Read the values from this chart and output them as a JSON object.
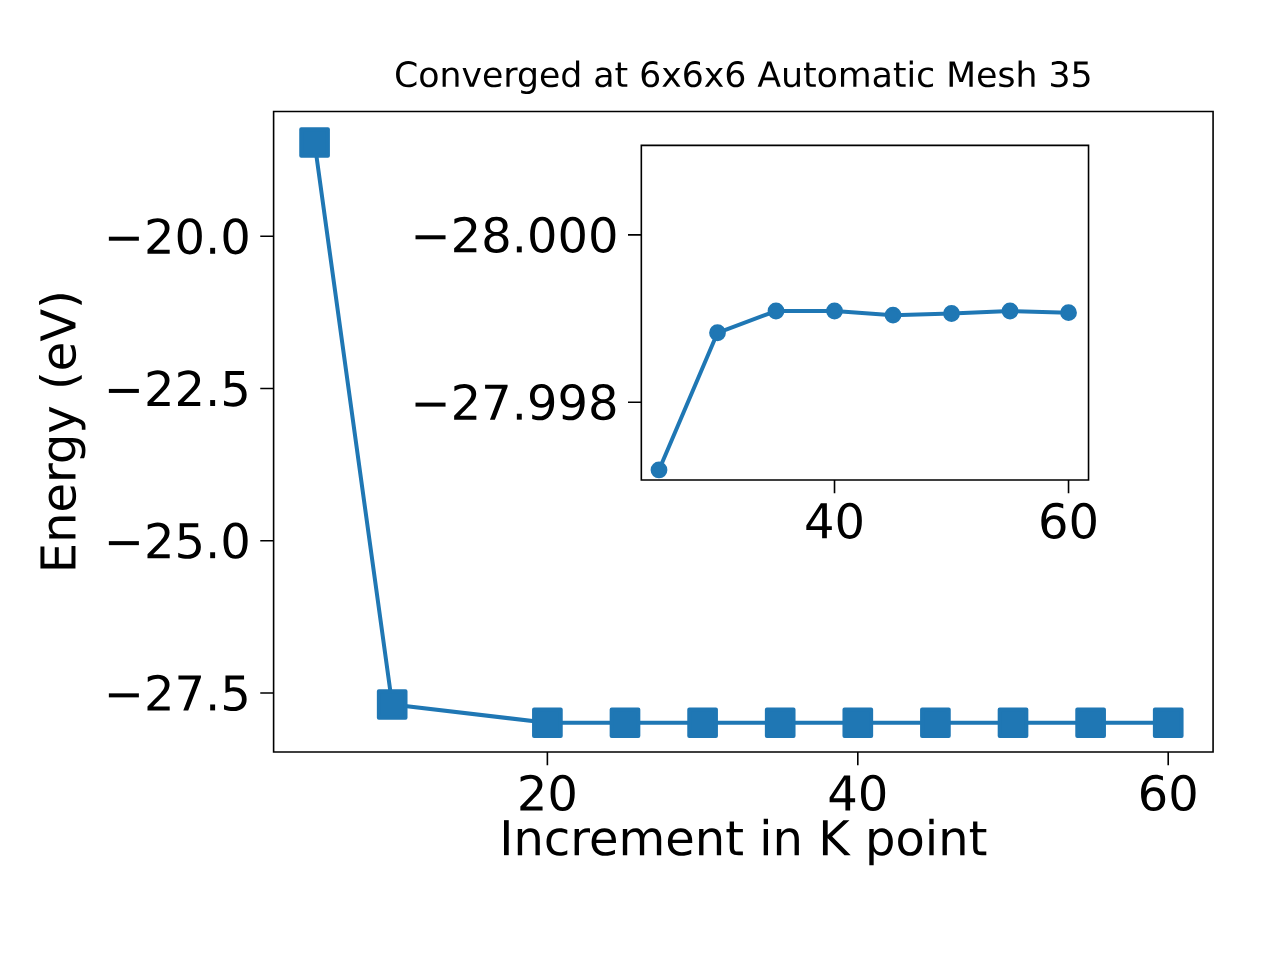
{
  "chart_data": [
    {
      "type": "line",
      "title": "Converged at 6x6x6 Automatic Mesh 35",
      "xlabel": "Increment in K point",
      "ylabel": "Energy (eV)",
      "x": [
        5,
        10,
        20,
        25,
        30,
        35,
        40,
        45,
        50,
        55,
        60
      ],
      "series": [
        {
          "color": "#1f77b4",
          "values": [
            -18.46,
            -27.69,
            -27.99,
            -27.99,
            -27.99,
            -27.99,
            -27.99,
            -27.99,
            -27.99,
            -27.99,
            -27.99
          ]
        }
      ],
      "xlim": [
        2.36,
        62.89
      ],
      "ylim": [
        -28.47,
        -17.95
      ],
      "xticks": [
        20,
        40,
        60
      ],
      "yticks": [
        {
          "value": -20.0,
          "label": "−20.0"
        },
        {
          "value": -22.5,
          "label": "−22.5"
        },
        {
          "value": -25.0,
          "label": "−25.0"
        },
        {
          "value": -27.5,
          "label": "−27.5"
        }
      ],
      "marker": "square",
      "line_style": "solid",
      "grid": false
    },
    {
      "type": "line",
      "x": [
        25,
        30,
        35,
        40,
        45,
        50,
        55,
        60
      ],
      "series": [
        {
          "color": "#1f77b4",
          "values": [
            -27.99719,
            -27.99883,
            -27.99909,
            -27.99909,
            -27.99904,
            -27.99906,
            -27.99909,
            -27.99907
          ]
        }
      ],
      "xlim": [
        23.49,
        61.71
      ],
      "ylim": [
        -27.99707,
        -28.00107
      ],
      "xticks": [
        40,
        60
      ],
      "yticks": [
        {
          "value": -28.0,
          "label": "−28.000"
        },
        {
          "value": -27.998,
          "label": "−27.998"
        }
      ],
      "marker": "circle",
      "line_style": "solid",
      "grid": false
    }
  ]
}
